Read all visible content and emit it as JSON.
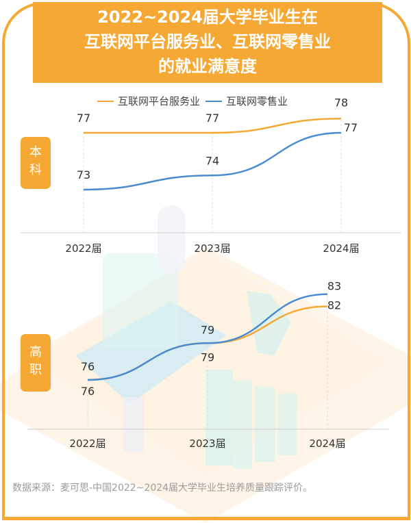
{
  "title": {
    "lines": [
      "2022~2024届大学毕业生在",
      "互联网平台服务业、互联网零售业",
      "的就业满意度"
    ]
  },
  "legend": [
    {
      "name": "互联网平台服务业",
      "color": "#F5A833"
    },
    {
      "name": "互联网零售业",
      "color": "#4A8BD0"
    }
  ],
  "badges": {
    "undergrad": [
      "本",
      "科"
    ],
    "vocational": [
      "高",
      "职"
    ]
  },
  "source": "数据来源：麦可思-中国2022~2024届大学毕业生培养质量跟踪评价。",
  "chart_data": [
    {
      "type": "line",
      "title": "本科",
      "categories": [
        "2022届",
        "2023届",
        "2024届"
      ],
      "series": [
        {
          "name": "互联网平台服务业",
          "values": [
            77,
            77,
            78
          ]
        },
        {
          "name": "互联网零售业",
          "values": [
            73,
            74,
            77
          ]
        }
      ]
    },
    {
      "type": "line",
      "title": "高职",
      "categories": [
        "2022届",
        "2023届",
        "2024届"
      ],
      "series": [
        {
          "name": "互联网平台服务业",
          "values": [
            76,
            79,
            82
          ]
        },
        {
          "name": "互联网零售业",
          "values": [
            76,
            79,
            83
          ]
        }
      ]
    }
  ]
}
